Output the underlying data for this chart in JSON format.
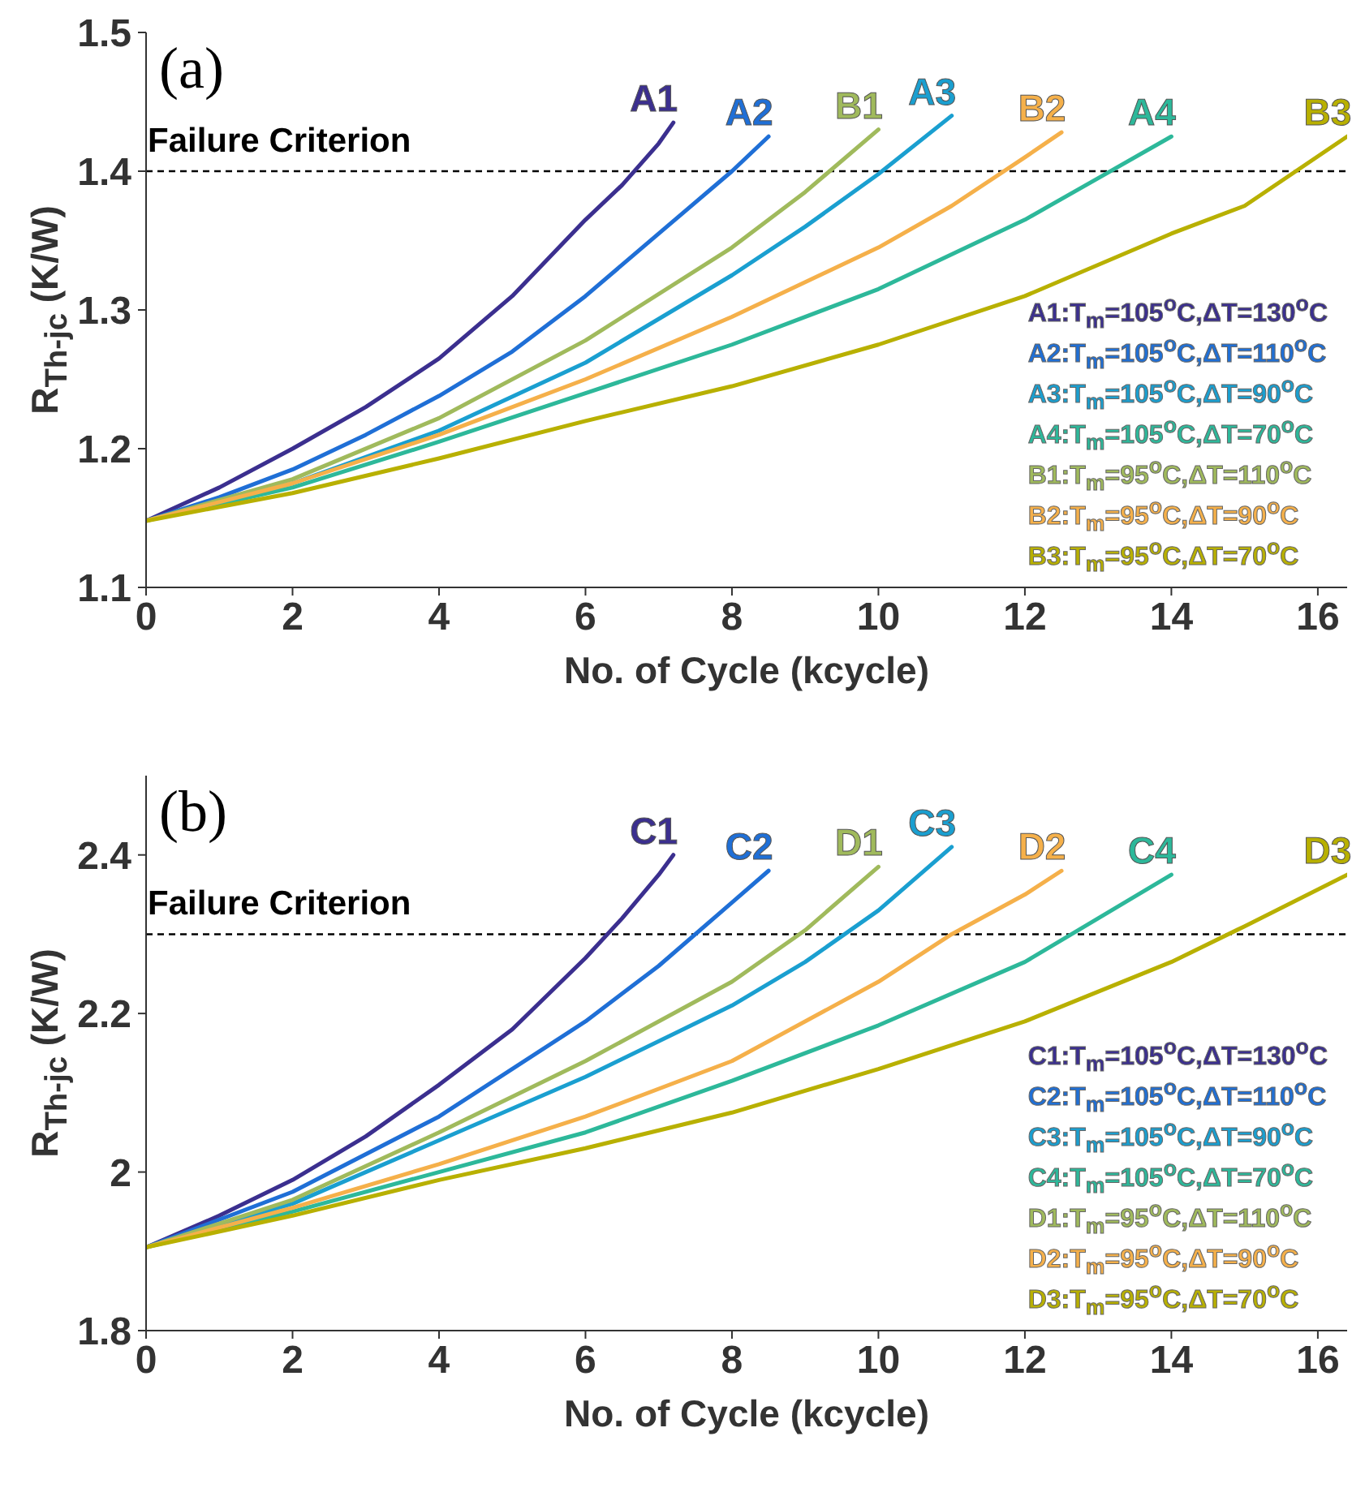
{
  "chart_data": [
    {
      "type": "line",
      "xlabel": "No. of Cycle (kcycle)",
      "ylabel": "R$_{Th-jc}$ (K/W)",
      "xlim": [
        0,
        16.4
      ],
      "xticks": [
        0,
        2,
        4,
        6,
        8,
        10,
        12,
        14,
        16
      ],
      "ylim": [
        1.1,
        1.5
      ],
      "yticks": [
        1.1,
        1.2,
        1.3,
        1.4,
        1.5
      ],
      "legend": "bottom right",
      "line_style": "solid",
      "marker": "none",
      "ref_lines": [
        {
          "axis": "y",
          "value": 1.4,
          "label": "Failure Criterion",
          "color": "#000000",
          "line_style": "dashed"
        }
      ],
      "annotations": [
        "(a)",
        {
          "text": "A1",
          "x": 7.2,
          "y": 1.435
        },
        {
          "text": "A2",
          "x": 8.5,
          "y": 1.425
        },
        {
          "text": "B1",
          "x": 10,
          "y": 1.43
        },
        {
          "text": "A3",
          "x": 11,
          "y": 1.44
        },
        {
          "text": "B2",
          "x": 12.5,
          "y": 1.428
        },
        {
          "text": "A4",
          "x": 14,
          "y": 1.425
        },
        {
          "text": "B3",
          "x": 16.4,
          "y": 1.425
        }
      ],
      "series": [
        {
          "name": "A1:T$_{m}$=105$^{o}$C,ΔT=130$^{o}$C",
          "color": "#3b2f8f",
          "x": [
            0,
            1,
            2,
            3,
            4,
            5,
            6,
            6.5,
            7,
            7.2
          ],
          "values": [
            1.148,
            1.172,
            1.2,
            1.23,
            1.265,
            1.31,
            1.365,
            1.39,
            1.42,
            1.435
          ]
        },
        {
          "name": "A2:T$_{m}$=105$^{o}$C,ΔT=110$^{o}$C",
          "color": "#1f6fd6",
          "x": [
            0,
            1,
            2,
            3,
            4,
            5,
            6,
            7,
            8,
            8.5
          ],
          "values": [
            1.148,
            1.165,
            1.185,
            1.21,
            1.238,
            1.27,
            1.31,
            1.355,
            1.4,
            1.425
          ]
        },
        {
          "name": "A3:T$_{m}$=105$^{o}$C,ΔT=90$^{o}$C",
          "color": "#1a9fd0",
          "x": [
            0,
            2,
            4,
            6,
            8,
            9,
            10,
            11
          ],
          "values": [
            1.148,
            1.175,
            1.213,
            1.262,
            1.325,
            1.36,
            1.398,
            1.44
          ]
        },
        {
          "name": "A4:T$_{m}$=105$^{o}$C,ΔT=70$^{o}$C",
          "color": "#2db89a",
          "x": [
            0,
            2,
            4,
            6,
            8,
            10,
            12,
            13,
            14
          ],
          "values": [
            1.148,
            1.172,
            1.205,
            1.24,
            1.275,
            1.315,
            1.365,
            1.395,
            1.425
          ]
        },
        {
          "name": "B1:T$_{m}$=95$^{o}$C,ΔT=110$^{o}$C",
          "color": "#a0ba5c",
          "x": [
            0,
            2,
            4,
            6,
            8,
            9,
            10
          ],
          "values": [
            1.148,
            1.178,
            1.222,
            1.278,
            1.345,
            1.385,
            1.43
          ]
        },
        {
          "name": "B2:T$_{m}$=95$^{o}$C,ΔT=90$^{o}$C",
          "color": "#f5b04a",
          "x": [
            0,
            2,
            4,
            6,
            8,
            10,
            11,
            12,
            12.5
          ],
          "values": [
            1.148,
            1.175,
            1.21,
            1.25,
            1.295,
            1.345,
            1.375,
            1.41,
            1.428
          ]
        },
        {
          "name": "B3:T$_{m}$=95$^{o}$C,ΔT=70$^{o}$C",
          "color": "#b8b000",
          "x": [
            0,
            2,
            4,
            6,
            8,
            10,
            12,
            14,
            15,
            16.4
          ],
          "values": [
            1.148,
            1.168,
            1.193,
            1.22,
            1.245,
            1.275,
            1.31,
            1.355,
            1.375,
            1.425
          ]
        }
      ]
    },
    {
      "type": "line",
      "xlabel": "No. of Cycle (kcycle)",
      "ylabel": "R$_{Th-jc}$ (K/W)",
      "xlim": [
        0,
        16.4
      ],
      "xticks": [
        0,
        2,
        4,
        6,
        8,
        10,
        12,
        14,
        16
      ],
      "ylim": [
        1.8,
        2.5
      ],
      "yticks": [
        1.8,
        2,
        2.2,
        2.4
      ],
      "legend": "bottom right",
      "line_style": "solid",
      "marker": "none",
      "ref_lines": [
        {
          "axis": "y",
          "value": 2.3,
          "label": "Failure Criterion",
          "color": "#000000",
          "line_style": "dashed"
        }
      ],
      "annotations": [
        "(b)",
        {
          "text": "C1",
          "x": 7.2,
          "y": 2.4
        },
        {
          "text": "C2",
          "x": 8.5,
          "y": 2.38
        },
        {
          "text": "D1",
          "x": 10,
          "y": 2.385
        },
        {
          "text": "C3",
          "x": 11,
          "y": 2.41
        },
        {
          "text": "D2",
          "x": 12.5,
          "y": 2.38
        },
        {
          "text": "C4",
          "x": 14,
          "y": 2.375
        },
        {
          "text": "D3",
          "x": 16.4,
          "y": 2.375
        }
      ],
      "series": [
        {
          "name": "C1:T$_{m}$=105$^{o}$C,ΔT=130$^{o}$C",
          "color": "#3b2f8f",
          "x": [
            0,
            1,
            2,
            3,
            4,
            5,
            6,
            6.5,
            7,
            7.2
          ],
          "values": [
            1.905,
            1.945,
            1.99,
            2.045,
            2.11,
            2.18,
            2.27,
            2.32,
            2.375,
            2.4
          ]
        },
        {
          "name": "C2:T$_{m}$=105$^{o}$C,ΔT=110$^{o}$C",
          "color": "#1f6fd6",
          "x": [
            0,
            2,
            4,
            6,
            7,
            8,
            8.5
          ],
          "values": [
            1.905,
            1.975,
            2.07,
            2.19,
            2.26,
            2.34,
            2.38
          ]
        },
        {
          "name": "C3:T$_{m}$=105$^{o}$C,ΔT=90$^{o}$C",
          "color": "#1a9fd0",
          "x": [
            0,
            2,
            4,
            6,
            8,
            9,
            10,
            11
          ],
          "values": [
            1.905,
            1.96,
            2.04,
            2.12,
            2.21,
            2.265,
            2.33,
            2.41
          ]
        },
        {
          "name": "C4:T$_{m}$=105$^{o}$C,ΔT=70$^{o}$C",
          "color": "#2db89a",
          "x": [
            0,
            2,
            4,
            6,
            8,
            10,
            12,
            13,
            14
          ],
          "values": [
            1.905,
            1.95,
            2.0,
            2.05,
            2.115,
            2.185,
            2.265,
            2.32,
            2.375
          ]
        },
        {
          "name": "D1:T$_{m}$=95$^{o}$C,ΔT=110$^{o}$C",
          "color": "#a0ba5c",
          "x": [
            0,
            2,
            4,
            6,
            8,
            9,
            10
          ],
          "values": [
            1.905,
            1.965,
            2.05,
            2.14,
            2.24,
            2.305,
            2.385
          ]
        },
        {
          "name": "D2:T$_{m}$=95$^{o}$C,ΔT=90$^{o}$C",
          "color": "#f5b04a",
          "x": [
            0,
            2,
            4,
            6,
            8,
            10,
            11,
            12,
            12.5
          ],
          "values": [
            1.905,
            1.955,
            2.01,
            2.07,
            2.14,
            2.24,
            2.3,
            2.35,
            2.38
          ]
        },
        {
          "name": "D3:T$_{m}$=95$^{o}$C,ΔT=70$^{o}$C",
          "color": "#b8b000",
          "x": [
            0,
            2,
            4,
            6,
            8,
            10,
            12,
            14,
            15,
            16.4
          ],
          "values": [
            1.905,
            1.945,
            1.99,
            2.03,
            2.075,
            2.13,
            2.19,
            2.265,
            2.31,
            2.375
          ]
        }
      ]
    }
  ]
}
